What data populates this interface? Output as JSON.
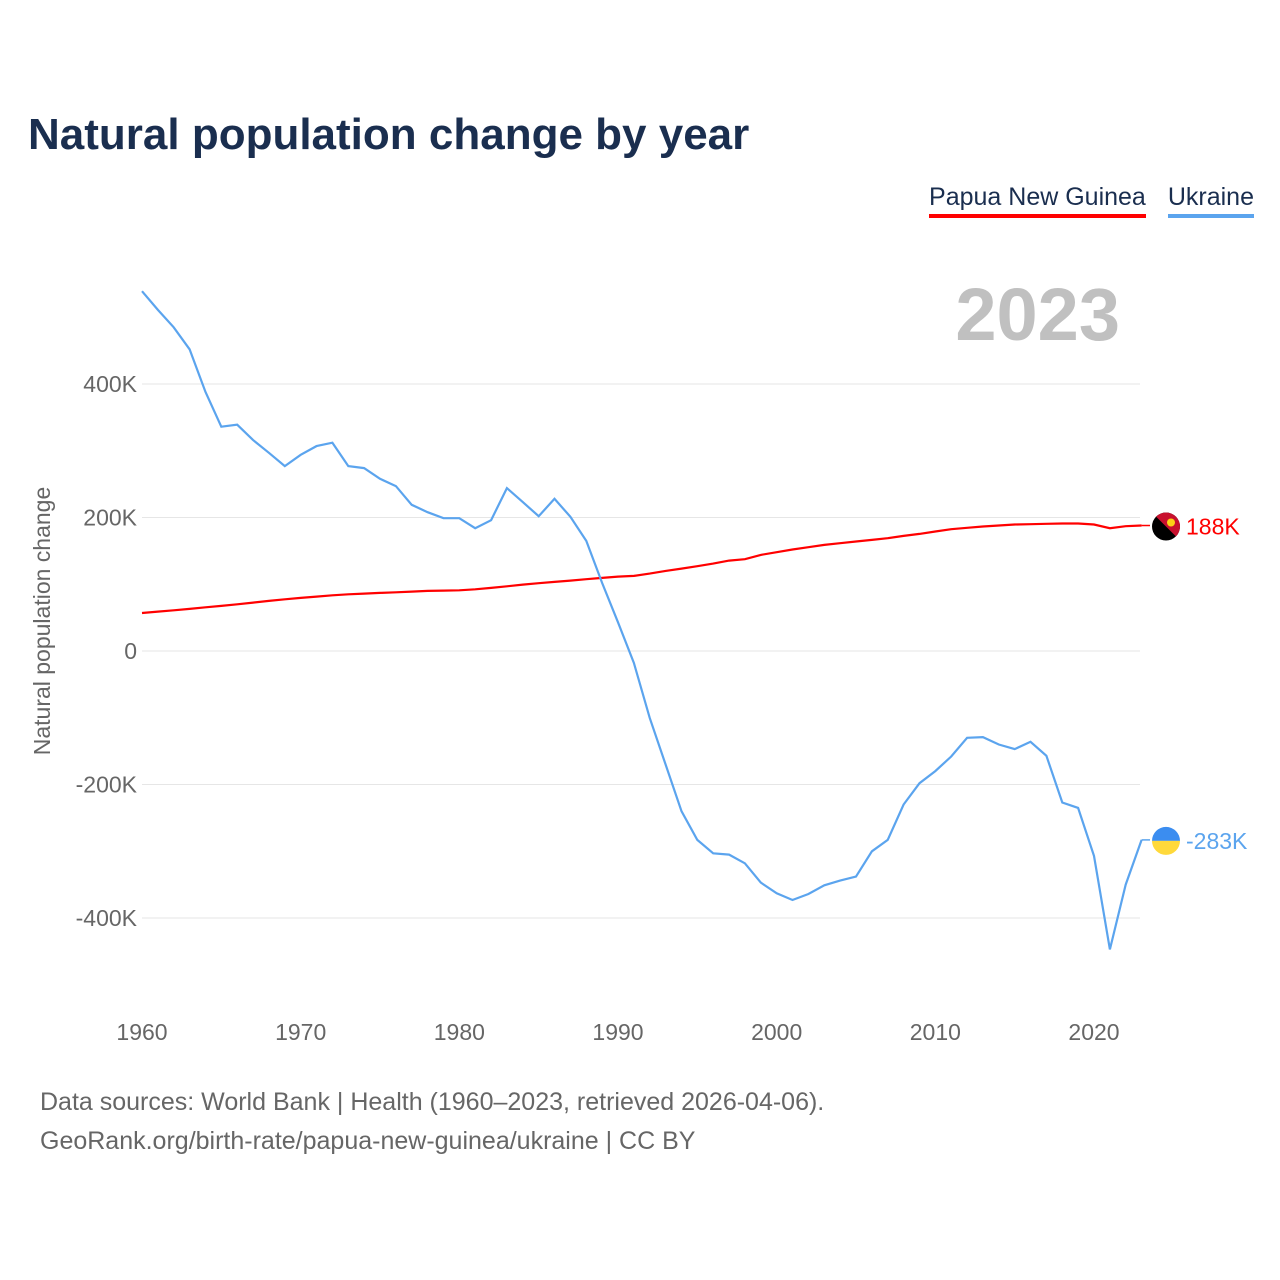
{
  "chart_data": {
    "type": "line",
    "title": "Natural population change by year",
    "xlabel": "",
    "ylabel": "Natural population change",
    "xlim": [
      1960,
      2023
    ],
    "ylim": [
      -500000,
      560000
    ],
    "grid": true,
    "legend_placement": "top-right",
    "year_label": "2023",
    "x_ticks": [
      1960,
      1970,
      1980,
      1990,
      2000,
      2010,
      2020
    ],
    "x_tick_labels": [
      "1960",
      "1970",
      "1980",
      "1990",
      "2000",
      "2010",
      "2020"
    ],
    "y_ticks": [
      400000,
      200000,
      0,
      -200000,
      -400000
    ],
    "y_tick_labels": [
      "400K",
      "200K",
      "0",
      "-200K",
      "-400K"
    ],
    "x": [
      1960,
      1961,
      1962,
      1963,
      1964,
      1965,
      1966,
      1967,
      1968,
      1969,
      1970,
      1971,
      1972,
      1973,
      1974,
      1975,
      1976,
      1977,
      1978,
      1979,
      1980,
      1981,
      1982,
      1983,
      1984,
      1985,
      1986,
      1987,
      1988,
      1989,
      1990,
      1991,
      1992,
      1993,
      1994,
      1995,
      1996,
      1997,
      1998,
      1999,
      2000,
      2001,
      2002,
      2003,
      2004,
      2005,
      2006,
      2007,
      2008,
      2009,
      2010,
      2011,
      2012,
      2013,
      2014,
      2015,
      2016,
      2017,
      2018,
      2019,
      2020,
      2021,
      2022,
      2023
    ],
    "series": [
      {
        "name": "Papua New Guinea",
        "color": "#ff0000",
        "end_label": "188K",
        "values": [
          57000,
          59000,
          61000,
          63000,
          65500,
          67500,
          70000,
          72500,
          75000,
          77500,
          79500,
          81500,
          83500,
          85000,
          86000,
          87000,
          88000,
          89000,
          90000,
          90500,
          91000,
          92500,
          94500,
          97000,
          99500,
          101500,
          103500,
          105500,
          107500,
          109500,
          111500,
          112500,
          116000,
          120000,
          123500,
          127000,
          131000,
          135500,
          137500,
          144000,
          148000,
          152000,
          155500,
          159000,
          161500,
          164000,
          166500,
          169000,
          172500,
          175500,
          179000,
          182500,
          184500,
          186500,
          188000,
          189500,
          190000,
          190500,
          191000,
          191000,
          189500,
          184000,
          187000,
          188000
        ]
      },
      {
        "name": "Ukraine",
        "color": "#5ba4ee",
        "end_label": "-283K",
        "values": [
          539000,
          511000,
          485000,
          452000,
          388000,
          336000,
          339000,
          316000,
          297000,
          277000,
          294000,
          307000,
          312000,
          277000,
          274000,
          258000,
          247000,
          219000,
          208000,
          199000,
          199000,
          184000,
          196000,
          244000,
          223000,
          202000,
          228000,
          201000,
          165000,
          102000,
          43000,
          -18000,
          -100000,
          -170000,
          -240000,
          -283000,
          -303000,
          -305000,
          -318000,
          -347000,
          -363000,
          -373000,
          -364000,
          -351000,
          -344000,
          -338000,
          -300000,
          -283000,
          -230000,
          -198000,
          -180000,
          -158000,
          -130000,
          -129000,
          -140000,
          -147000,
          -136000,
          -157000,
          -227000,
          -235000,
          -307000,
          -447000,
          -350000,
          -283000
        ]
      }
    ]
  },
  "sources": {
    "line1": "Data sources: World Bank | Health (1960–2023, retrieved 2026-04-06).",
    "line2": "GeoRank.org/birth-rate/papua-new-guinea/ukraine | CC BY"
  }
}
